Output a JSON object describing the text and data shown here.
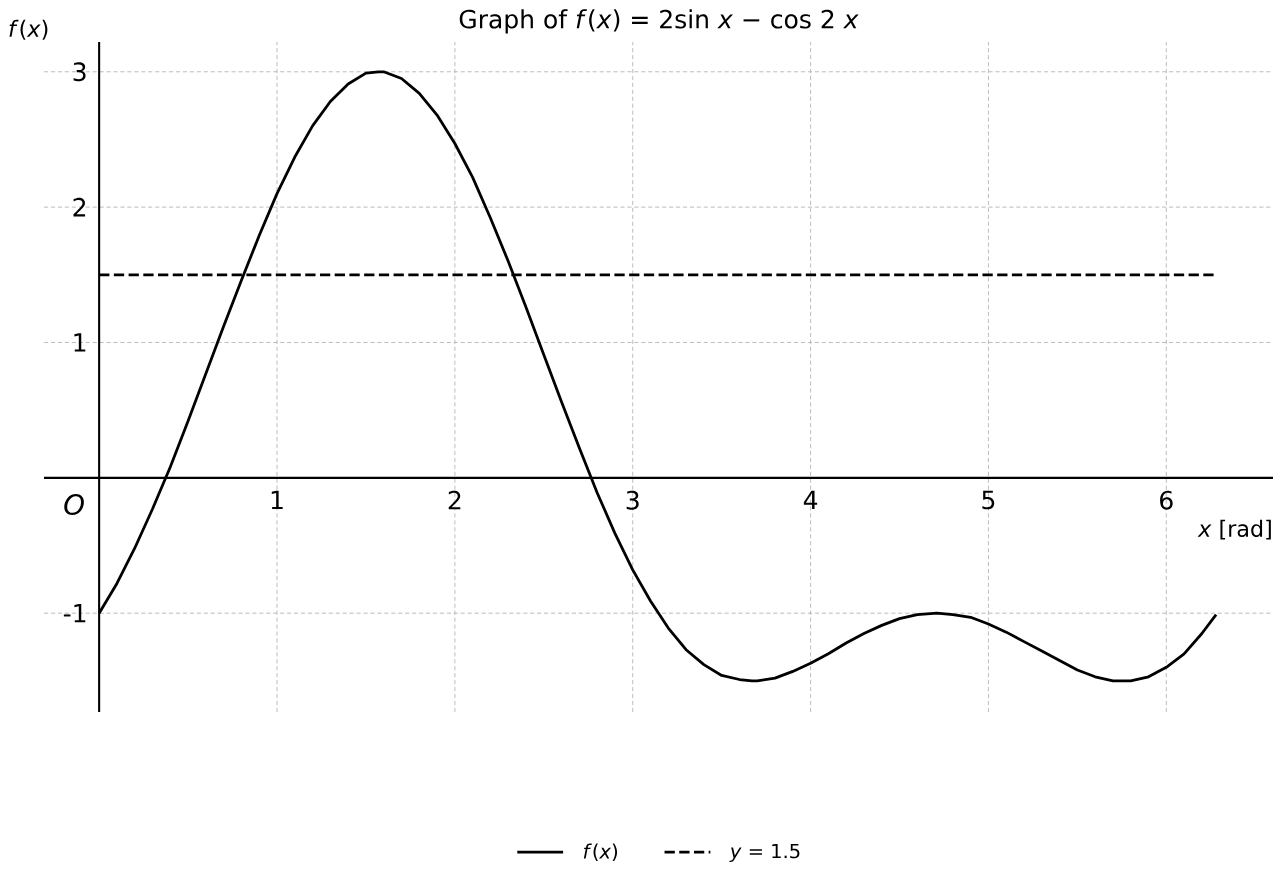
{
  "chart_data": {
    "type": "line",
    "title": "Graph of *f*(*x*) = 2sin *x* − cos 2 *x*",
    "xlabel": "*x* [rad]",
    "ylabel": "*f*(*x*)",
    "annotations": [
      "*O*"
    ],
    "xlim": [
      -0.31,
      6.6
    ],
    "ylim": [
      -1.73,
      3.22
    ],
    "xticks": [
      1,
      2,
      3,
      4,
      5,
      6
    ],
    "yticks": [
      -1,
      1,
      2,
      3
    ],
    "grid": true,
    "legend": "bottom",
    "series": [
      {
        "name": "*f*(*x*)",
        "color": "#000000",
        "line_style": "solid",
        "x": [
          0,
          0.1,
          0.2,
          0.3,
          0.4,
          0.5,
          0.6,
          0.7,
          0.8,
          0.9,
          1.0,
          1.1,
          1.2,
          1.3,
          1.4,
          1.5,
          1.57,
          1.6,
          1.7,
          1.8,
          1.9,
          2.0,
          2.1,
          2.2,
          2.3,
          2.4,
          2.5,
          2.6,
          2.7,
          2.8,
          2.9,
          3.0,
          3.1,
          3.2,
          3.3,
          3.4,
          3.5,
          3.6,
          3.67,
          3.7,
          3.8,
          3.9,
          4.0,
          4.1,
          4.2,
          4.3,
          4.4,
          4.5,
          4.6,
          4.71,
          4.8,
          4.9,
          5.0,
          5.1,
          5.2,
          5.3,
          5.4,
          5.5,
          5.6,
          5.7,
          5.76,
          5.8,
          5.9,
          6.0,
          6.1,
          6.2,
          6.28
        ],
        "values": [
          -1.0,
          -0.78,
          -0.52,
          -0.23,
          0.08,
          0.42,
          0.77,
          1.12,
          1.46,
          1.79,
          2.1,
          2.37,
          2.6,
          2.78,
          2.91,
          2.99,
          3.0,
          3.0,
          2.95,
          2.84,
          2.68,
          2.47,
          2.22,
          1.92,
          1.6,
          1.26,
          0.91,
          0.56,
          0.22,
          -0.11,
          -0.41,
          -0.68,
          -0.91,
          -1.11,
          -1.27,
          -1.38,
          -1.46,
          -1.49,
          -1.5,
          -1.5,
          -1.48,
          -1.43,
          -1.37,
          -1.3,
          -1.22,
          -1.15,
          -1.09,
          -1.04,
          -1.01,
          -1.0,
          -1.01,
          -1.03,
          -1.08,
          -1.14,
          -1.21,
          -1.28,
          -1.35,
          -1.42,
          -1.47,
          -1.5,
          -1.5,
          -1.5,
          -1.47,
          -1.4,
          -1.3,
          -1.15,
          -1.01
        ]
      },
      {
        "name": "*y* = 1.5",
        "color": "#000000",
        "line_style": "dashed",
        "x": [
          0,
          6.28
        ],
        "values": [
          1.5,
          1.5
        ]
      }
    ]
  }
}
